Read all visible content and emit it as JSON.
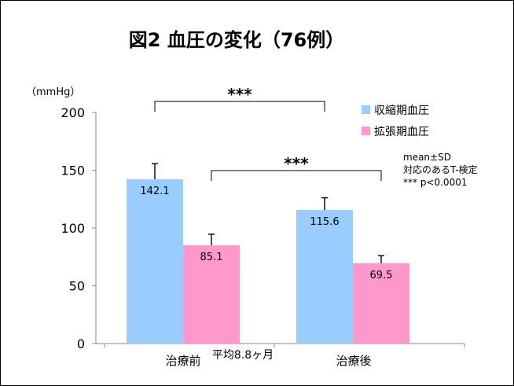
{
  "chart_data": {
    "type": "bar",
    "title": "図2 血圧の変化（76例）",
    "unit_label": "（mmHg）",
    "categories": [
      "治療前",
      "治療後"
    ],
    "x_note": "平均8.8ヶ月",
    "ylim": [
      0,
      200
    ],
    "yticks": [
      0,
      50,
      100,
      150,
      200
    ],
    "series": [
      {
        "name": "収縮期血圧",
        "color": "#99ccff",
        "values": [
          142.1,
          115.6
        ],
        "sd": [
          13.5,
          10.5
        ]
      },
      {
        "name": "拡張期血圧",
        "color": "#ff99cc",
        "values": [
          85.1,
          69.5
        ],
        "sd": [
          9.5,
          6.5
        ]
      }
    ],
    "data_labels": [
      "142.1",
      "115.6",
      "85.1",
      "69.5"
    ],
    "significance": [
      {
        "label": "***",
        "from": [
          0,
          0
        ],
        "to": [
          1,
          0
        ]
      },
      {
        "label": "***",
        "from": [
          0,
          1
        ],
        "to": [
          1,
          1
        ]
      }
    ],
    "legend_position": "top-right",
    "notes": [
      "mean±SD",
      "対応のあるT-検定",
      "*** p<0.0001"
    ],
    "grid": false
  }
}
